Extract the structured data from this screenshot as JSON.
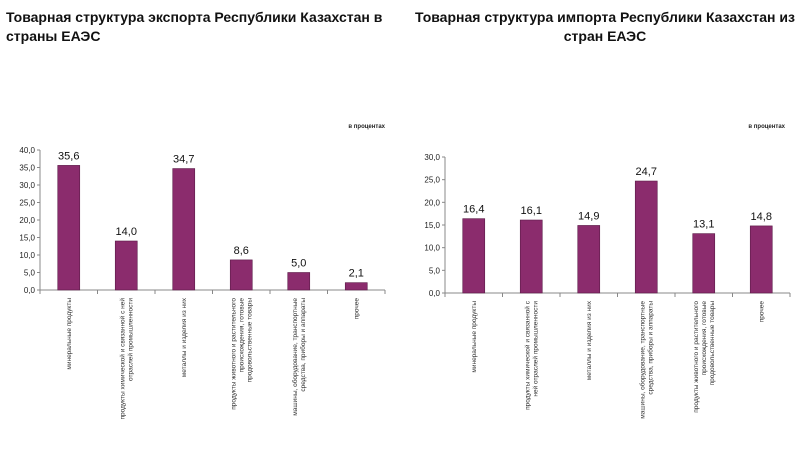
{
  "chart_data": [
    {
      "type": "bar",
      "title": "Товарная структура экспорта Республики Казахстан в страны ЕАЭС",
      "unit_note": "в процентах",
      "categories": [
        "минеральные продукты",
        "продукты химической и связанной с ней\nотраслей промышленности",
        "металлы и изделия из них",
        "продукты животного и растительного\nпроисхождения, готовые\nпродовольственные товары",
        "машины, оборудование, транспортные\nсредства, приборы и аппараты",
        "прочее"
      ],
      "values": [
        35.6,
        14.0,
        34.7,
        8.6,
        5.0,
        2.1
      ],
      "data_labels": [
        "35,6",
        "14,0",
        "34,7",
        "8,6",
        "5,0",
        "2,1"
      ],
      "ylim": [
        0,
        40
      ],
      "yticks": [
        "0,0",
        "5,0",
        "10,0",
        "15,0",
        "20,0",
        "25,0",
        "30,0",
        "35,0",
        "40,0"
      ],
      "grid": false,
      "color": "#8b2c6d"
    },
    {
      "type": "bar",
      "title": "Товарная структура импорта Республики Казахстан из стран ЕАЭС",
      "unit_note": "в процентах",
      "categories": [
        "минеральные продукты",
        "продукты химической и связанной с\nней отраслей промышленности",
        "металлы и изделия из них",
        "машины, оборудование, транспортные\nсредства, приборы и аппараты",
        "продукты животного и растительного\nпроисхождения, готовые\nпродовольственные товары",
        "прочее"
      ],
      "values": [
        16.4,
        16.1,
        14.9,
        24.7,
        13.1,
        14.8
      ],
      "data_labels": [
        "16,4",
        "16,1",
        "14,9",
        "24,7",
        "13,1",
        "14,8"
      ],
      "ylim": [
        0,
        30
      ],
      "yticks": [
        "0,0",
        "5,0",
        "10,0",
        "15,0",
        "20,0",
        "25,0",
        "30,0"
      ],
      "grid": false,
      "color": "#8b2c6d"
    }
  ]
}
